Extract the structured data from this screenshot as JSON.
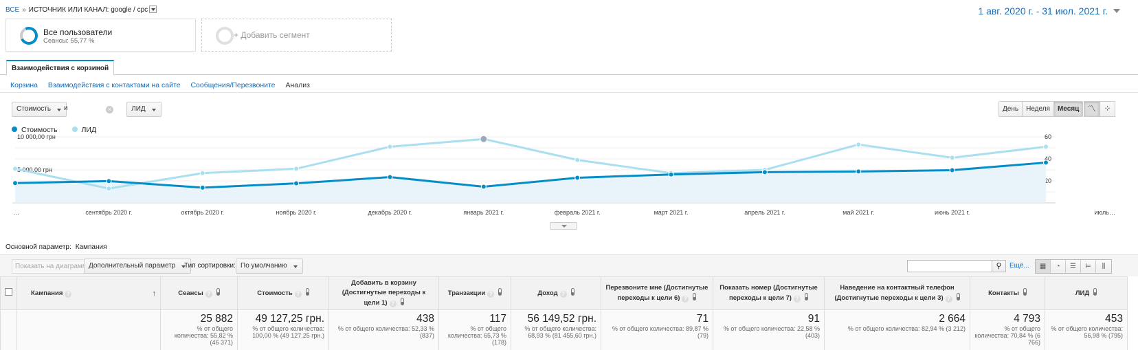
{
  "breadcrumb": {
    "all": "ВСЕ",
    "sep": "»",
    "current": "ИСТОЧНИК ИЛИ КАНАЛ: google / cpc"
  },
  "date_range": "1 авг. 2020 г. - 31 июл. 2021 г.",
  "segments": [
    {
      "title": "Все пользователи",
      "subtitle": "Сеансы: 55,77 %"
    },
    {
      "title": "+ Добавить сегмент"
    }
  ],
  "tab": "Взаимодействия с корзиной",
  "subtabs": [
    "Корзина",
    "Взаимодействия с контактами на сайте",
    "Сообщения/Перезвоните",
    "Анализ"
  ],
  "metric_selectors": {
    "first": "Стоимость",
    "and": "и",
    "second": "ЛИД"
  },
  "period_buttons": [
    "День",
    "Неделя",
    "Месяц"
  ],
  "period_selected": "Месяц",
  "chart_type_icons": [
    "line-chart-icon",
    "motion-chart-icon"
  ],
  "colors": {
    "series1": "#058dc7",
    "series2": "#aadff0",
    "accent": "#1a6bb5"
  },
  "chart_data": {
    "type": "line",
    "legend_position": "top-left",
    "x": [
      "…",
      "сентябрь 2020 г.",
      "октябрь 2020 г.",
      "ноябрь 2020 г.",
      "декабрь 2020 г.",
      "январь 2021 г.",
      "февраль 2021 г.",
      "март 2021 г.",
      "апрель 2021 г.",
      "май 2021 г.",
      "июнь 2021 г.",
      "июль…"
    ],
    "series": [
      {
        "name": "Стоимость",
        "axis": "left",
        "values": [
          3000,
          3300,
          2300,
          2950,
          3900,
          2450,
          3800,
          4300,
          4650,
          4750,
          4950,
          6100
        ]
      },
      {
        "name": "ЛИД",
        "axis": "right",
        "values": [
          31,
          13,
          27,
          31,
          51,
          58,
          39,
          27,
          30,
          53,
          41,
          51
        ]
      }
    ],
    "y_left": {
      "ticks": [
        "10 000,00 грн",
        "5 000,00 грн"
      ],
      "range": [
        0,
        10000
      ]
    },
    "y_right": {
      "ticks": [
        "60",
        "40",
        "20"
      ],
      "range": [
        0,
        60
      ]
    }
  },
  "primary_dimension": {
    "label": "Основной параметр:",
    "value": "Кампания"
  },
  "toolbar": {
    "plot_rows": "Показать на диаграмме",
    "secondary_dimension": "Дополнительный параметр",
    "sort_label": "Тип сортировки:",
    "sort_value": "По умолчанию",
    "more": "Ещё..."
  },
  "table": {
    "columns": [
      "Кампания",
      "Сеансы",
      "Стоимость",
      "Добавить в корзину (Достигнутые переходы к цели 1)",
      "Транзакции",
      "Доход",
      "Перезвоните мне (Достигнутые переходы к цели 6)",
      "Показать номер (Достигнутые переходы к цели 7)",
      "Наведение на контактный телефон (Достигнутые переходы к цели 3)",
      "Контакты",
      "ЛИД"
    ],
    "totals": [
      {
        "value": "25 882",
        "sub": "% от общего количества: 55,82 % (46 371)"
      },
      {
        "value": "49 127,25 грн.",
        "sub": "% от общего количества: 100,00 % (49 127,25 грн.)"
      },
      {
        "value": "438",
        "sub": "% от общего количества: 52,33 % (837)"
      },
      {
        "value": "117",
        "sub": "% от общего количества: 65,73 % (178)"
      },
      {
        "value": "56 149,52 грн.",
        "sub": "% от общего количества: 68,93 % (81 455,60 грн.)"
      },
      {
        "value": "71",
        "sub": "% от общего количества: 89,87 % (79)"
      },
      {
        "value": "91",
        "sub": "% от общего количества: 22,58 % (403)"
      },
      {
        "value": "2 664",
        "sub": "% от общего количества: 82,94 % (3 212)"
      },
      {
        "value": "4 793",
        "sub": "% от общего количества: 70,84 % (6 766)"
      },
      {
        "value": "453",
        "sub": "% от общего количества: 56,98 % (795)"
      }
    ]
  }
}
